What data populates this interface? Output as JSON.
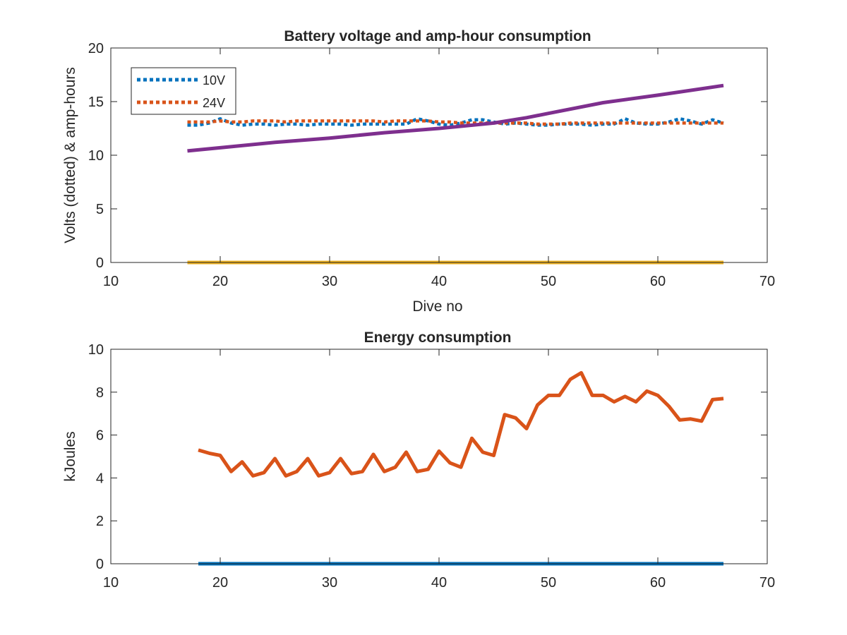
{
  "chart_data": [
    {
      "type": "line",
      "title": "Battery voltage and amp-hour consumption",
      "xlabel": "Dive no",
      "ylabel": "Volts (dotted) & amp-hours",
      "xlim": [
        10,
        70
      ],
      "ylim": [
        0,
        20
      ],
      "xticks": [
        "10",
        "20",
        "30",
        "40",
        "50",
        "60",
        "70"
      ],
      "yticks": [
        "0",
        "5",
        "10",
        "15",
        "20"
      ],
      "grid": false,
      "legend_position": "top-left",
      "series": [
        {
          "name": "10V",
          "color": "#0072bd",
          "style": "dotted",
          "x": [
            17,
            18,
            19,
            20,
            21,
            22,
            23,
            24,
            25,
            26,
            27,
            28,
            29,
            30,
            31,
            32,
            33,
            34,
            35,
            36,
            37,
            38,
            39,
            40,
            41,
            42,
            43,
            44,
            45,
            46,
            47,
            48,
            49,
            50,
            51,
            52,
            53,
            54,
            55,
            56,
            57,
            58,
            59,
            60,
            61,
            62,
            63,
            64,
            65,
            66
          ],
          "values": [
            12.8,
            12.8,
            13.0,
            13.4,
            13.0,
            12.8,
            12.9,
            12.9,
            12.8,
            12.9,
            12.9,
            12.8,
            12.9,
            12.9,
            12.9,
            12.8,
            12.9,
            12.9,
            12.9,
            12.9,
            12.9,
            13.4,
            13.2,
            12.9,
            12.8,
            13.0,
            13.3,
            13.3,
            13.1,
            12.9,
            13.0,
            12.9,
            12.8,
            12.8,
            12.9,
            12.9,
            12.9,
            12.8,
            12.9,
            12.9,
            13.4,
            13.0,
            12.9,
            12.9,
            13.1,
            13.4,
            13.2,
            12.9,
            13.3,
            13.0
          ]
        },
        {
          "name": "24V",
          "color": "#d95319",
          "style": "dotted",
          "x": [
            17,
            18,
            19,
            20,
            21,
            22,
            23,
            24,
            25,
            26,
            27,
            28,
            29,
            30,
            31,
            32,
            33,
            34,
            35,
            36,
            37,
            38,
            39,
            40,
            41,
            42,
            43,
            44,
            45,
            46,
            47,
            48,
            49,
            50,
            51,
            52,
            53,
            54,
            55,
            56,
            57,
            58,
            59,
            60,
            61,
            62,
            63,
            64,
            65,
            66
          ],
          "values": [
            13.1,
            13.1,
            13.1,
            13.2,
            13.1,
            13.1,
            13.2,
            13.2,
            13.2,
            13.1,
            13.2,
            13.2,
            13.2,
            13.2,
            13.2,
            13.2,
            13.2,
            13.2,
            13.1,
            13.2,
            13.2,
            13.2,
            13.2,
            13.1,
            13.1,
            13.0,
            13.0,
            13.0,
            13.0,
            13.0,
            13.0,
            13.0,
            12.9,
            12.9,
            12.9,
            13.0,
            13.0,
            13.0,
            13.0,
            13.0,
            13.0,
            13.0,
            13.0,
            13.0,
            13.0,
            13.0,
            13.0,
            13.0,
            13.0,
            13.0
          ]
        },
        {
          "color": "#edb120",
          "style": "solid",
          "x": [
            17,
            66
          ],
          "values": [
            0,
            0
          ]
        },
        {
          "color": "#7e2f8e",
          "style": "solid",
          "x": [
            17,
            20,
            25,
            30,
            35,
            40,
            45,
            48,
            50,
            55,
            60,
            66
          ],
          "values": [
            10.4,
            10.7,
            11.2,
            11.6,
            12.1,
            12.5,
            13.0,
            13.5,
            13.9,
            14.9,
            15.6,
            16.5
          ]
        }
      ]
    },
    {
      "type": "line",
      "title": "Energy consumption",
      "xlabel": "",
      "ylabel": "kJoules",
      "xlim": [
        10,
        70
      ],
      "ylim": [
        0,
        10
      ],
      "xticks": [
        "10",
        "20",
        "30",
        "40",
        "50",
        "60",
        "70"
      ],
      "yticks": [
        "0",
        "2",
        "4",
        "6",
        "8",
        "10"
      ],
      "grid": false,
      "series": [
        {
          "color": "#d95319",
          "style": "solid",
          "x": [
            18,
            19,
            20,
            21,
            22,
            23,
            24,
            25,
            26,
            27,
            28,
            29,
            30,
            31,
            32,
            33,
            34,
            35,
            36,
            37,
            38,
            39,
            40,
            41,
            42,
            43,
            44,
            45,
            46,
            47,
            48,
            49,
            50,
            51,
            52,
            53,
            54,
            55,
            56,
            57,
            58,
            59,
            60,
            61,
            62,
            63,
            64,
            65,
            66
          ],
          "values": [
            5.3,
            5.15,
            5.05,
            4.3,
            4.75,
            4.1,
            4.25,
            4.9,
            4.1,
            4.3,
            4.9,
            4.1,
            4.25,
            4.9,
            4.2,
            4.3,
            5.1,
            4.3,
            4.5,
            5.2,
            4.3,
            4.4,
            5.25,
            4.7,
            4.5,
            5.85,
            5.2,
            5.05,
            6.95,
            6.8,
            6.3,
            7.4,
            7.85,
            7.85,
            8.6,
            8.9,
            7.85,
            7.85,
            7.55,
            7.8,
            7.55,
            8.05,
            7.85,
            7.35,
            6.7,
            6.75,
            6.65,
            7.65,
            7.7
          ]
        },
        {
          "color": "#0072bd",
          "style": "solid",
          "x": [
            18,
            66
          ],
          "values": [
            0,
            0
          ]
        }
      ]
    }
  ]
}
